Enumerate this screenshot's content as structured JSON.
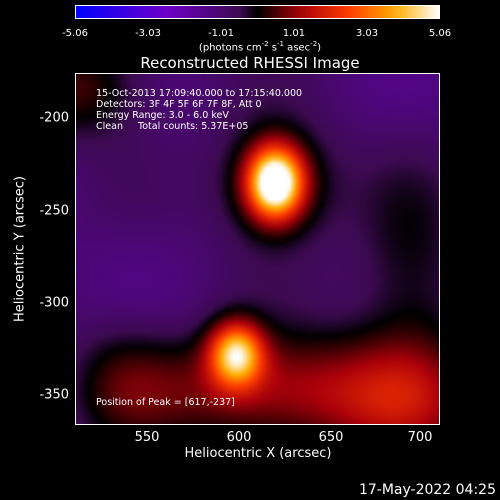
{
  "colorbar": {
    "ticks": [
      "-5.06",
      "-3.03",
      "-1.01",
      "1.01",
      "3.03",
      "5.06"
    ],
    "units_main": "(photons cm",
    "units_exp1": "-2",
    "units_mid1": " s",
    "units_exp2": "-1",
    "units_mid2": " asec",
    "units_exp3": "-2",
    "units_end": ")",
    "min": -5.06,
    "max": 5.06
  },
  "title": "Reconstructed RHESSI Image",
  "info": {
    "time": "15-Oct-2013 17:09:40.000 to 17:15:40.000",
    "detectors": "Detectors: 3F 4F 5F 6F 7F 8F, Att 0",
    "energy": "Energy Range: 3.0 - 6.0 keV",
    "clean": "Clean     Total counts: 5.37E+05"
  },
  "peak": "Position of Peak = [617,-237]",
  "axes": {
    "xlabel": "Heliocentric X (arcsec)",
    "ylabel": "Heliocentric Y (arcsec)",
    "xticks": [
      "550",
      "600",
      "650",
      "700"
    ],
    "yticks": [
      "-200",
      "-250",
      "-300",
      "-350"
    ],
    "xlim": [
      510,
      705
    ],
    "ylim": [
      -368,
      -178
    ]
  },
  "sources": [
    {
      "x": 617,
      "y": -237,
      "peak": 5.06
    },
    {
      "x": 596,
      "y": -330,
      "peak": 3.6
    }
  ],
  "date_stamp": "17-May-2022 04:25"
}
